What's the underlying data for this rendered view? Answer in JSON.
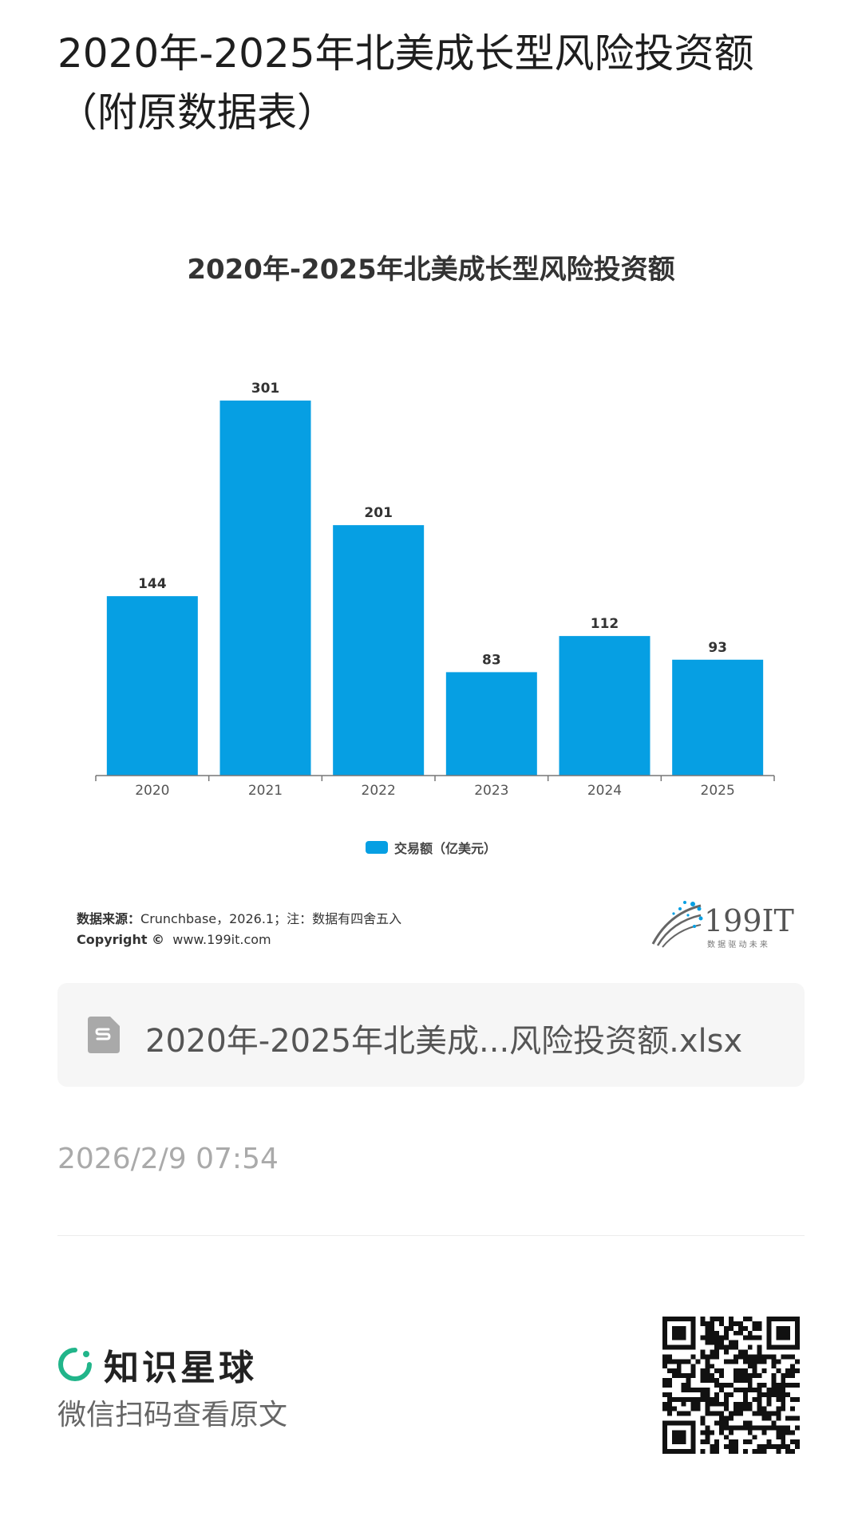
{
  "page": {
    "title": "2020年-2025年北美成长型风险投资额（附原数据表）"
  },
  "chart_data": {
    "type": "bar",
    "title": "2020年-2025年北美成长型风险投资额",
    "categories": [
      "2020",
      "2021",
      "2022",
      "2023",
      "2024",
      "2025"
    ],
    "series": [
      {
        "name": "交易额（亿美元）",
        "values": [
          144,
          301,
          201,
          83,
          112,
          93
        ]
      }
    ],
    "value_labels": [
      "144",
      "301",
      "201",
      "83",
      "112",
      "93"
    ],
    "ylim": [
      0,
      301
    ],
    "grid": false,
    "legend_position": "bottom",
    "colors": {
      "bar": "#069fe3"
    }
  },
  "source": {
    "label": "数据来源：",
    "text": "Crunchbase，2026.1；注：数据有四舍五入",
    "copyright_label": "Copyright ©",
    "copyright_url": "www.199it.com",
    "logo_text": "199IT",
    "logo_tagline": "数 据 驱 动 未 来"
  },
  "attachment": {
    "icon": "spreadsheet-file-icon",
    "file_name": "2020年-2025年北美成...风险投资额.xlsx"
  },
  "timestamp": "2026/2/9 07:54",
  "footer": {
    "brand_icon": "planet-ring-icon",
    "brand_name": "知识星球",
    "scan_hint": "微信扫码查看原文",
    "qr_icon": "qr-code-icon"
  }
}
